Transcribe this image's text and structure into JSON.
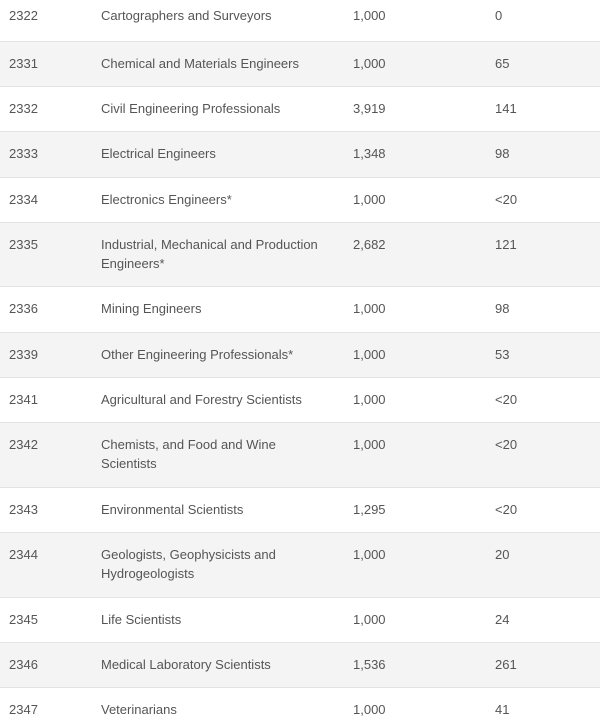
{
  "rows": [
    {
      "code": "2322",
      "occupation": "Cartographers and Surveyors",
      "value1": "1,000",
      "value2": "0"
    },
    {
      "code": "2331",
      "occupation": "Chemical and Materials Engineers",
      "value1": "1,000",
      "value2": "65"
    },
    {
      "code": "2332",
      "occupation": "Civil Engineering Professionals",
      "value1": "3,919",
      "value2": "141"
    },
    {
      "code": "2333",
      "occupation": "Electrical Engineers",
      "value1": "1,348",
      "value2": "98"
    },
    {
      "code": "2334",
      "occupation": "Electronics Engineers*",
      "value1": "1,000",
      "value2": "<20"
    },
    {
      "code": "2335",
      "occupation": "Industrial, Mechanical and Production Engineers*",
      "value1": "2,682",
      "value2": "121"
    },
    {
      "code": "2336",
      "occupation": "Mining Engineers",
      "value1": "1,000",
      "value2": "98"
    },
    {
      "code": "2339",
      "occupation": "Other Engineering Professionals*",
      "value1": "1,000",
      "value2": "53"
    },
    {
      "code": "2341",
      "occupation": "Agricultural and Forestry Scientists",
      "value1": "1,000",
      "value2": "<20"
    },
    {
      "code": "2342",
      "occupation": "Chemists, and Food and Wine Scientists",
      "value1": "1,000",
      "value2": "<20"
    },
    {
      "code": "2343",
      "occupation": "Environmental Scientists",
      "value1": "1,295",
      "value2": "<20"
    },
    {
      "code": "2344",
      "occupation": "Geologists, Geophysicists and Hydrogeologists",
      "value1": "1,000",
      "value2": "20"
    },
    {
      "code": "2345",
      "occupation": "Life Scientists",
      "value1": "1,000",
      "value2": "24"
    },
    {
      "code": "2346",
      "occupation": "Medical Laboratory Scientists",
      "value1": "1,536",
      "value2": "261"
    },
    {
      "code": "2347",
      "occupation": "Veterinarians",
      "value1": "1,000",
      "value2": "41"
    }
  ]
}
